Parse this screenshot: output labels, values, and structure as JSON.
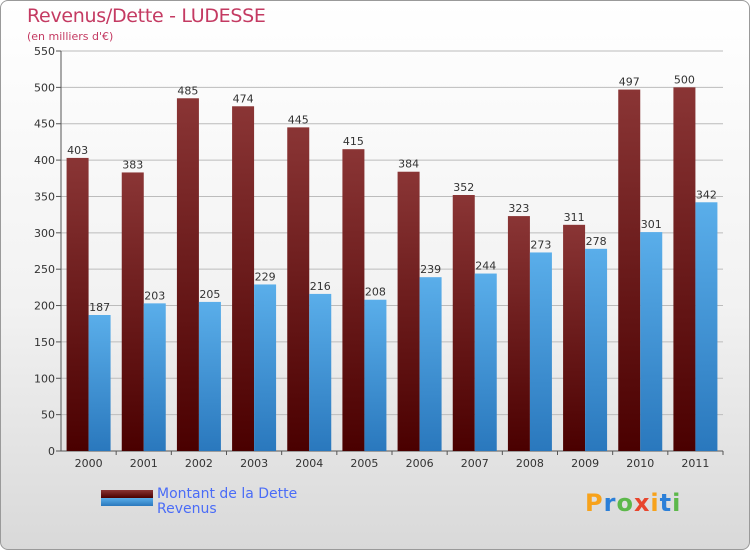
{
  "title": "Revenus/Dette - LUDESSE",
  "subtitle": "(en milliers d'€)",
  "logo_text": "Proxiti",
  "colors": {
    "dette_top": "#8a3535",
    "dette_bottom": "#4a0000",
    "revenus_top": "#5aaeea",
    "revenus_bottom": "#2a78bd",
    "grid": "#bcbcbc",
    "title": "#c43a62",
    "legend_text": "#4a6cf7"
  },
  "chart_data": {
    "type": "bar",
    "categories": [
      "2000",
      "2001",
      "2002",
      "2003",
      "2004",
      "2005",
      "2006",
      "2007",
      "2008",
      "2009",
      "2010",
      "2011"
    ],
    "series": [
      {
        "name": "Montant de la Dette",
        "values": [
          403,
          383,
          485,
          474,
          445,
          415,
          384,
          352,
          323,
          311,
          497,
          500
        ]
      },
      {
        "name": "Revenus",
        "values": [
          187,
          203,
          205,
          229,
          216,
          208,
          239,
          244,
          273,
          278,
          301,
          342
        ]
      }
    ],
    "ylim": [
      0,
      550
    ],
    "yticks": [
      0,
      50,
      100,
      150,
      200,
      250,
      300,
      350,
      400,
      450,
      500,
      550
    ],
    "grid": true,
    "legend_position": "bottom-left"
  }
}
